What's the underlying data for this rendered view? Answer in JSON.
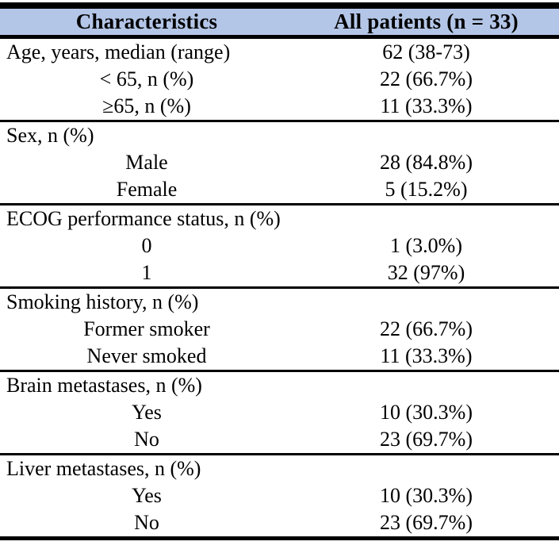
{
  "table": {
    "title_semantic": "Patient baseline characteristics",
    "header_bg": "#b4c6e7",
    "border_color": "#000000",
    "header": {
      "col1": "Characteristics",
      "col2": "All patients (n = 33)"
    },
    "sections": [
      {
        "label": "Age, years, median (range)",
        "value": "62 (38-73)",
        "rows": [
          {
            "label": "< 65, n (%)",
            "value": "22 (66.7%)"
          },
          {
            "label": "≥65, n (%)",
            "value": "11 (33.3%)"
          }
        ]
      },
      {
        "label": "Sex, n (%)",
        "value": "",
        "rows": [
          {
            "label": "Male",
            "value": "28 (84.8%)"
          },
          {
            "label": "Female",
            "value": "5 (15.2%)"
          }
        ]
      },
      {
        "label": "ECOG performance status, n (%)",
        "value": "",
        "rows": [
          {
            "label": "0",
            "value": "1 (3.0%)"
          },
          {
            "label": "1",
            "value": "32 (97%)"
          }
        ]
      },
      {
        "label": "Smoking history, n (%)",
        "value": "",
        "rows": [
          {
            "label": "Former smoker",
            "value": "22 (66.7%)"
          },
          {
            "label": "Never smoked",
            "value": "11 (33.3%)"
          }
        ]
      },
      {
        "label": "Brain metastases, n (%)",
        "value": "",
        "rows": [
          {
            "label": "Yes",
            "value": "10 (30.3%)"
          },
          {
            "label": "No",
            "value": "23 (69.7%)"
          }
        ]
      },
      {
        "label": "Liver metastases, n (%)",
        "value": "",
        "rows": [
          {
            "label": "Yes",
            "value": "10 (30.3%)"
          },
          {
            "label": "No",
            "value": "23 (69.7%)"
          }
        ]
      }
    ]
  }
}
